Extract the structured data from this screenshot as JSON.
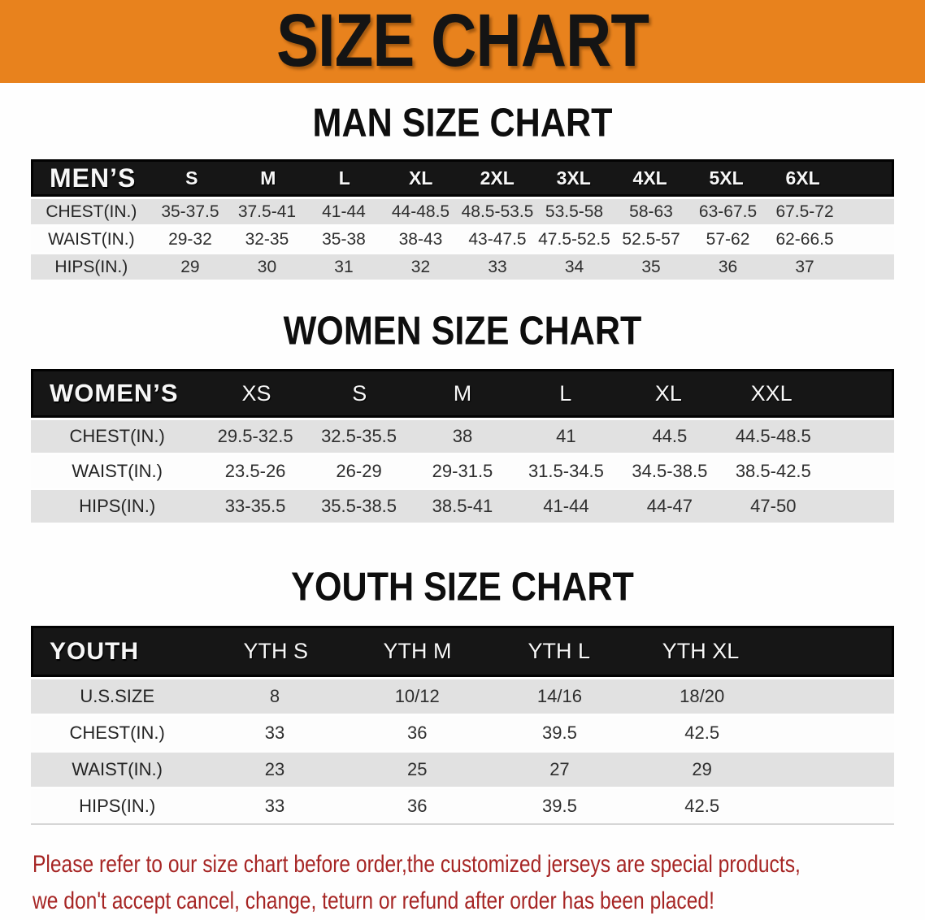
{
  "banner": {
    "title": "SIZE CHART"
  },
  "sections": [
    {
      "heading": "MAN SIZE CHART",
      "table": {
        "header_label": "MEN’S",
        "columns": [
          "S",
          "M",
          "L",
          "XL",
          "2XL",
          "3XL",
          "4XL",
          "5XL",
          "6XL"
        ],
        "rows": [
          {
            "label": "CHEST(IN.)",
            "values": [
              "35-37.5",
              "37.5-41",
              "41-44",
              "44-48.5",
              "48.5-53.5",
              "53.5-58",
              "58-63",
              "63-67.5",
              "67.5-72"
            ]
          },
          {
            "label": "WAIST(IN.)",
            "values": [
              "29-32",
              "32-35",
              "35-38",
              "38-43",
              "43-47.5",
              "47.5-52.5",
              "52.5-57",
              "57-62",
              "62-66.5"
            ]
          },
          {
            "label": "HIPS(IN.)",
            "values": [
              "29",
              "30",
              "31",
              "32",
              "33",
              "34",
              "35",
              "36",
              "37"
            ]
          }
        ]
      }
    },
    {
      "heading": "WOMEN SIZE CHART",
      "table": {
        "header_label": "WOMEN’S",
        "columns": [
          "XS",
          "S",
          "M",
          "L",
          "XL",
          "XXL"
        ],
        "rows": [
          {
            "label": "CHEST(IN.)",
            "values": [
              "29.5-32.5",
              "32.5-35.5",
              "38",
              "41",
              "44.5",
              "44.5-48.5"
            ]
          },
          {
            "label": "WAIST(IN.)",
            "values": [
              "23.5-26",
              "26-29",
              "29-31.5",
              "31.5-34.5",
              "34.5-38.5",
              "38.5-42.5"
            ]
          },
          {
            "label": "HIPS(IN.)",
            "values": [
              "33-35.5",
              "35.5-38.5",
              "38.5-41",
              "41-44",
              "44-47",
              "47-50"
            ]
          }
        ]
      }
    },
    {
      "heading": "YOUTH SIZE CHART",
      "table": {
        "header_label": "YOUTH",
        "columns": [
          "YTH S",
          "YTH M",
          "YTH L",
          "YTH XL"
        ],
        "rows": [
          {
            "label": "U.S.SIZE",
            "values": [
              "8",
              "10/12",
              "14/16",
              "18/20"
            ]
          },
          {
            "label": "CHEST(IN.)",
            "values": [
              "33",
              "36",
              "39.5",
              "42.5"
            ]
          },
          {
            "label": "WAIST(IN.)",
            "values": [
              "23",
              "25",
              "27",
              "29"
            ]
          },
          {
            "label": "HIPS(IN.)",
            "values": [
              "33",
              "36",
              "39.5",
              "42.5"
            ]
          }
        ]
      }
    }
  ],
  "footer": {
    "line1": "Please refer to our size chart before order,the customized jerseys are special products,",
    "line2": "we don't accept cancel, change, teturn or refund after order has been placed!"
  },
  "colors": {
    "banner_bg": "#e8821d",
    "header_bar_bg": "#161616",
    "stripe_gray": "#e1e1e1",
    "footer_red": "#a62524"
  },
  "chart_data": [
    {
      "type": "table",
      "title": "MAN SIZE CHART",
      "columns": [
        "MEN’S",
        "S",
        "M",
        "L",
        "XL",
        "2XL",
        "3XL",
        "4XL",
        "5XL",
        "6XL"
      ],
      "rows": [
        [
          "CHEST(IN.)",
          "35-37.5",
          "37.5-41",
          "41-44",
          "44-48.5",
          "48.5-53.5",
          "53.5-58",
          "58-63",
          "63-67.5",
          "67.5-72"
        ],
        [
          "WAIST(IN.)",
          "29-32",
          "32-35",
          "35-38",
          "38-43",
          "43-47.5",
          "47.5-52.5",
          "52.5-57",
          "57-62",
          "62-66.5"
        ],
        [
          "HIPS(IN.)",
          "29",
          "30",
          "31",
          "32",
          "33",
          "34",
          "35",
          "36",
          "37"
        ]
      ]
    },
    {
      "type": "table",
      "title": "WOMEN SIZE CHART",
      "columns": [
        "WOMEN’S",
        "XS",
        "S",
        "M",
        "L",
        "XL",
        "XXL"
      ],
      "rows": [
        [
          "CHEST(IN.)",
          "29.5-32.5",
          "32.5-35.5",
          "38",
          "41",
          "44.5",
          "44.5-48.5"
        ],
        [
          "WAIST(IN.)",
          "23.5-26",
          "26-29",
          "29-31.5",
          "31.5-34.5",
          "34.5-38.5",
          "38.5-42.5"
        ],
        [
          "HIPS(IN.)",
          "33-35.5",
          "35.5-38.5",
          "38.5-41",
          "41-44",
          "44-47",
          "47-50"
        ]
      ]
    },
    {
      "type": "table",
      "title": "YOUTH SIZE CHART",
      "columns": [
        "YOUTH",
        "YTH S",
        "YTH M",
        "YTH L",
        "YTH XL"
      ],
      "rows": [
        [
          "U.S.SIZE",
          "8",
          "10/12",
          "14/16",
          "18/20"
        ],
        [
          "CHEST(IN.)",
          "33",
          "36",
          "39.5",
          "42.5"
        ],
        [
          "WAIST(IN.)",
          "23",
          "25",
          "27",
          "29"
        ],
        [
          "HIPS(IN.)",
          "33",
          "36",
          "39.5",
          "42.5"
        ]
      ]
    }
  ]
}
